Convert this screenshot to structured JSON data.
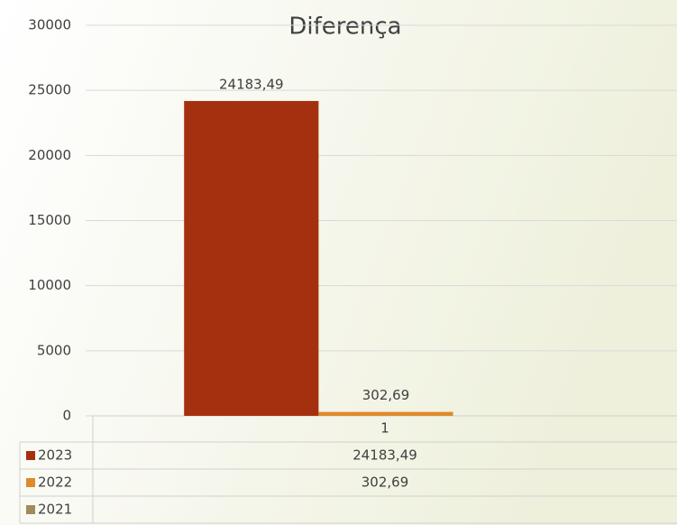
{
  "chart_data": {
    "type": "bar",
    "title": "Diferença",
    "categories": [
      "1"
    ],
    "series": [
      {
        "name": "2023",
        "color": "#a5300f",
        "values": [
          24183.49
        ],
        "value_labels": [
          "24183,49"
        ]
      },
      {
        "name": "2022",
        "color": "#de8a2d",
        "values": [
          302.69
        ],
        "value_labels": [
          "302,69"
        ]
      },
      {
        "name": "2021",
        "color": "#a08c5b",
        "values": [
          null
        ],
        "value_labels": [
          null
        ]
      }
    ],
    "ylim": [
      0,
      30000
    ],
    "yticks": [
      0,
      5000,
      10000,
      15000,
      20000,
      25000,
      30000
    ],
    "grid": true
  }
}
